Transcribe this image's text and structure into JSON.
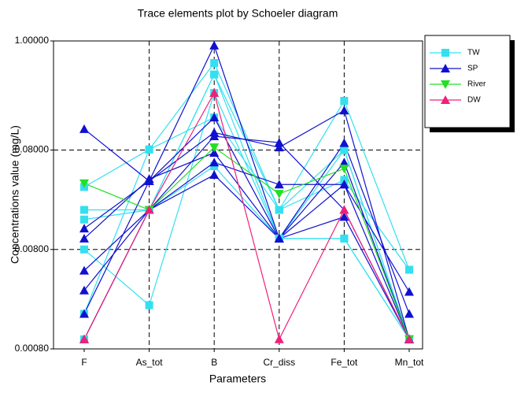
{
  "chart_data": {
    "type": "line",
    "title": "Trace elements plot by Schoeler diagram",
    "x_label": "Parameters",
    "y_label": "Concentrations value (mg/L)",
    "categories": [
      "F",
      "As_tot",
      "B",
      "Cr_diss",
      "Fe_tot",
      "Mn_tot"
    ],
    "ylog": true,
    "grid": true,
    "legend": "right",
    "ylim": [
      0.0008,
      1
    ],
    "yticks": [
      {
        "value": 0.0008,
        "label": "0.00080"
      },
      {
        "value": 0.008,
        "label": "0.00800"
      },
      {
        "value": 0.08,
        "label": "0.08000"
      },
      {
        "value": 1,
        "label": "1.00000"
      }
    ],
    "series": [
      {
        "name": "TW",
        "color": "#33e0f0",
        "marker": "square",
        "lines": [
          [
            0.034,
            0.081,
            0.6,
            0.02,
            0.25,
            0.005
          ],
          [
            0.02,
            0.02,
            0.46,
            0.02,
            0.08,
            0.001
          ],
          [
            0.008,
            0.0022,
            0.3,
            0.0103,
            0.0103,
            0.001
          ],
          [
            0.0018,
            0.081,
            0.17,
            0.02,
            0.04,
            0.005
          ],
          [
            0.016,
            0.02,
            0.055,
            0.0103,
            0.08,
            0.001
          ],
          [
            0.001,
            0.02,
            0.46,
            0.0103,
            0.0103,
            0.001
          ]
        ]
      },
      {
        "name": "SP",
        "color": "#1010d0",
        "marker": "triangle-up",
        "lines": [
          [
            0.13,
            0.039,
            0.9,
            0.0103,
            0.017,
            0.001
          ],
          [
            0.013,
            0.039,
            0.12,
            0.085,
            0.2,
            0.001
          ],
          [
            0.0103,
            0.041,
            0.075,
            0.0103,
            0.094,
            0.0018
          ],
          [
            0.0049,
            0.02,
            0.06,
            0.036,
            0.036,
            0.003
          ],
          [
            0.0031,
            0.02,
            0.045,
            0.0103,
            0.06,
            0.001
          ],
          [
            0.0018,
            0.039,
            0.17,
            0.0103,
            0.036,
            0.001
          ],
          [
            0.001,
            0.02,
            0.11,
            0.095,
            0.02,
            0.001
          ]
        ]
      },
      {
        "name": "River",
        "color": "#22e022",
        "marker": "triangle-down",
        "lines": [
          [
            0.037,
            0.02,
            0.085,
            0.029,
            0.052,
            0.001
          ]
        ]
      },
      {
        "name": "DW",
        "color": "#f0207a",
        "marker": "triangle-up",
        "lines": [
          [
            0.001,
            0.02,
            0.3,
            0.001,
            0.02,
            0.001
          ]
        ]
      }
    ]
  }
}
